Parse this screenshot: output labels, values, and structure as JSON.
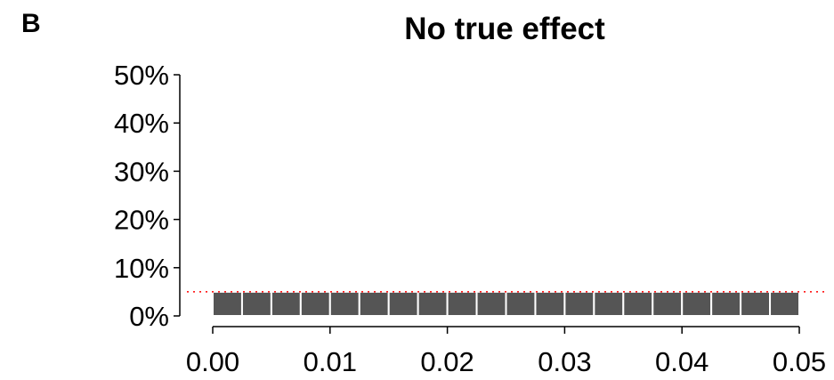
{
  "panel_label": "B",
  "chart_data": {
    "type": "bar",
    "title": "No true effect",
    "xlabel": "",
    "ylabel": "",
    "xlim": [
      0,
      0.05
    ],
    "ylim": [
      0,
      0.5
    ],
    "x_ticks": [
      {
        "value": 0.0,
        "label": "0.00"
      },
      {
        "value": 0.01,
        "label": "0.01"
      },
      {
        "value": 0.02,
        "label": "0.02"
      },
      {
        "value": 0.03,
        "label": "0.03"
      },
      {
        "value": 0.04,
        "label": "0.04"
      },
      {
        "value": 0.05,
        "label": "0.05"
      }
    ],
    "y_ticks": [
      {
        "value": 0.0,
        "label": "0%"
      },
      {
        "value": 0.1,
        "label": "10%"
      },
      {
        "value": 0.2,
        "label": "20%"
      },
      {
        "value": 0.3,
        "label": "30%"
      },
      {
        "value": 0.4,
        "label": "40%"
      },
      {
        "value": 0.5,
        "label": "50%"
      }
    ],
    "bin_width": 0.0025,
    "bins": [
      {
        "start": 0.0,
        "end": 0.0025,
        "value": 0.05
      },
      {
        "start": 0.0025,
        "end": 0.005,
        "value": 0.05
      },
      {
        "start": 0.005,
        "end": 0.0075,
        "value": 0.05
      },
      {
        "start": 0.0075,
        "end": 0.01,
        "value": 0.05
      },
      {
        "start": 0.01,
        "end": 0.0125,
        "value": 0.05
      },
      {
        "start": 0.0125,
        "end": 0.015,
        "value": 0.05
      },
      {
        "start": 0.015,
        "end": 0.0175,
        "value": 0.05
      },
      {
        "start": 0.0175,
        "end": 0.02,
        "value": 0.05
      },
      {
        "start": 0.02,
        "end": 0.0225,
        "value": 0.05
      },
      {
        "start": 0.0225,
        "end": 0.025,
        "value": 0.05
      },
      {
        "start": 0.025,
        "end": 0.0275,
        "value": 0.05
      },
      {
        "start": 0.0275,
        "end": 0.03,
        "value": 0.05
      },
      {
        "start": 0.03,
        "end": 0.0325,
        "value": 0.05
      },
      {
        "start": 0.0325,
        "end": 0.035,
        "value": 0.05
      },
      {
        "start": 0.035,
        "end": 0.0375,
        "value": 0.05
      },
      {
        "start": 0.0375,
        "end": 0.04,
        "value": 0.05
      },
      {
        "start": 0.04,
        "end": 0.0425,
        "value": 0.05
      },
      {
        "start": 0.0425,
        "end": 0.045,
        "value": 0.05
      },
      {
        "start": 0.045,
        "end": 0.0475,
        "value": 0.05
      },
      {
        "start": 0.0475,
        "end": 0.05,
        "value": 0.05
      }
    ],
    "reference_line": {
      "y": 0.05,
      "style": "dotted",
      "color": "#ff0000"
    },
    "bar_color": "#555555",
    "grid": false,
    "legend": "none"
  }
}
